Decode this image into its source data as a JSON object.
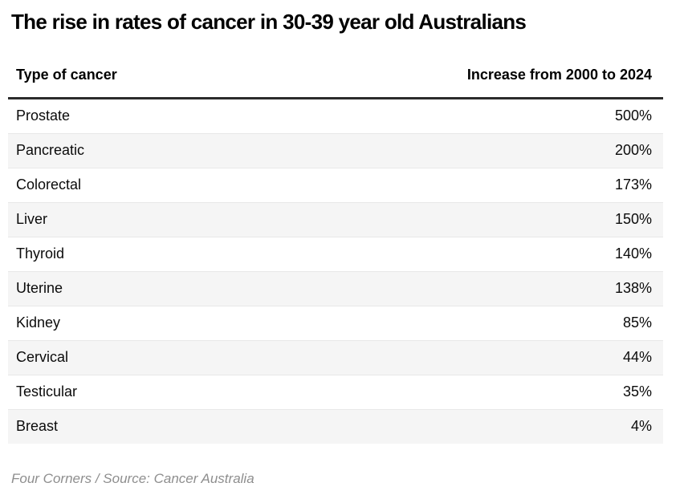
{
  "page": {
    "title": "The rise in rates of cancer in 30-39 year old Australians"
  },
  "table": {
    "columns": [
      "Type of cancer",
      "Increase from 2000 to 2024"
    ],
    "rows": [
      {
        "type": "Prostate",
        "increase": "500%"
      },
      {
        "type": "Pancreatic",
        "increase": "200%"
      },
      {
        "type": "Colorectal",
        "increase": "173%"
      },
      {
        "type": "Liver",
        "increase": "150%"
      },
      {
        "type": "Thyroid",
        "increase": "140%"
      },
      {
        "type": "Uterine",
        "increase": "138%"
      },
      {
        "type": "Kidney",
        "increase": "85%"
      },
      {
        "type": "Cervical",
        "increase": "44%"
      },
      {
        "type": "Testicular",
        "increase": "35%"
      },
      {
        "type": "Breast",
        "increase": "4%"
      }
    ]
  },
  "footer": {
    "attribution": "Four Corners / Source: Cancer Australia"
  },
  "colors": {
    "row_stripe": "#f5f5f5",
    "row_divider": "#e8e8e8",
    "header_rule": "#2b2b2b",
    "footer_text": "#8e8e8e",
    "text": "#000000",
    "background": "#ffffff"
  },
  "chart_data": {
    "type": "table",
    "title": "The rise in rates of cancer in 30-39 year old Australians",
    "columns": [
      "Type of cancer",
      "Increase from 2000 to 2024"
    ],
    "categories": [
      "Prostate",
      "Pancreatic",
      "Colorectal",
      "Liver",
      "Thyroid",
      "Uterine",
      "Kidney",
      "Cervical",
      "Testicular",
      "Breast"
    ],
    "values_pct": [
      500,
      200,
      173,
      150,
      140,
      138,
      85,
      44,
      35,
      4
    ],
    "value_format": "percent",
    "source": "Four Corners / Source: Cancer Australia"
  }
}
